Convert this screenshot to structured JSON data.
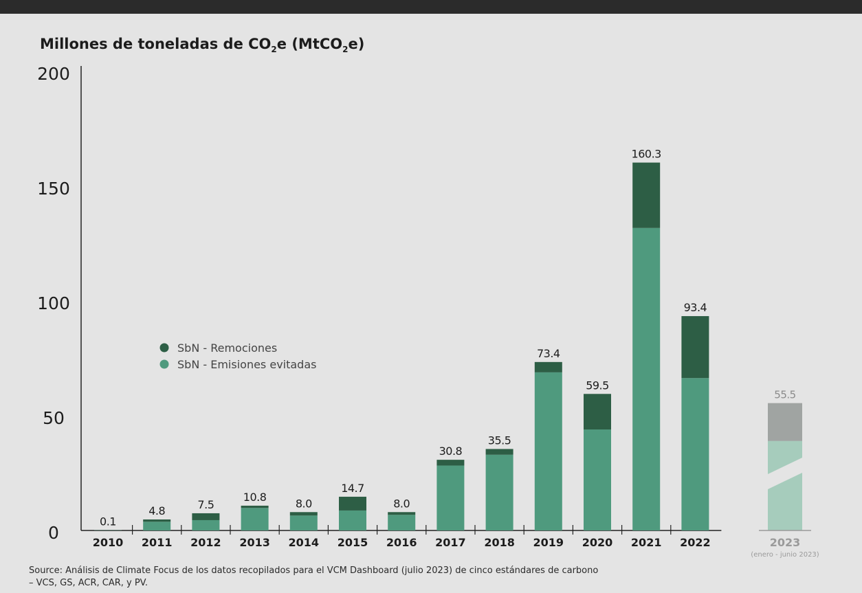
{
  "title_parts": {
    "t1": "Millones de toneladas de CO",
    "s1": "2",
    "t2": "e (MtCO",
    "s2": "2",
    "t3": "e)"
  },
  "colors": {
    "removals": "#2d5e45",
    "avoided": "#4f9a7e",
    "projected_dark": "#8a8f8c",
    "projected_light": "#9ec9b7",
    "axis": "#222222"
  },
  "chart_data": {
    "type": "bar",
    "stacked": true,
    "ylabel": "Millones de toneladas de CO2e (MtCO2e)",
    "ylim": [
      0,
      200
    ],
    "yticks": [
      0,
      50,
      100,
      150,
      200
    ],
    "legend_position": "middle-left",
    "categories": [
      "2010",
      "2011",
      "2012",
      "2013",
      "2014",
      "2015",
      "2016",
      "2017",
      "2018",
      "2019",
      "2020",
      "2021",
      "2022"
    ],
    "totals": [
      "0.1",
      "4.8",
      "7.5",
      "10.8",
      "8.0",
      "14.7",
      "8.0",
      "30.8",
      "35.5",
      "73.4",
      "59.5",
      "160.3",
      "93.4"
    ],
    "series": [
      {
        "name": "SbN - Remociones",
        "values": [
          0,
          1.0,
          3.0,
          1.0,
          1.5,
          6.0,
          1.2,
          2.5,
          2.5,
          4.5,
          15.5,
          28.5,
          27.0
        ]
      },
      {
        "name": "SbN - Emisiones evitadas",
        "values": [
          0.1,
          3.8,
          4.5,
          9.8,
          6.5,
          8.7,
          6.8,
          28.3,
          33.0,
          68.9,
          44.0,
          131.8,
          66.4
        ]
      }
    ],
    "projected": {
      "category": "2023",
      "sublabel": "(enero - junio 2023)",
      "total": "55.5",
      "removals": 16.5,
      "avoided": 39.0
    },
    "source": "Source: Análisis de Climate Focus de los datos recopilados para el VCM Dashboard (julio 2023) de cinco estándares de carbono",
    "source_line2": "– VCS, GS, ACR, CAR, y PV."
  }
}
